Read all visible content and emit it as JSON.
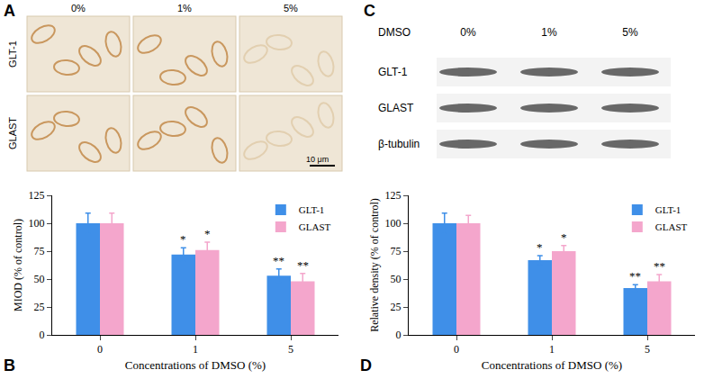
{
  "panels": [
    {
      "panel": "A",
      "columns": [
        "0%",
        "1%",
        "5%"
      ],
      "rows": [
        "GLT-1",
        "GLAST"
      ],
      "scale_bar": "10 μm"
    },
    {
      "panel": "C",
      "header": "DMSO",
      "columns": [
        "0%",
        "1%",
        "5%"
      ],
      "rows": [
        "GLT-1",
        "GLAST",
        "β-tubulin"
      ]
    }
  ],
  "chart_data": [
    {
      "panel": "B",
      "type": "bar",
      "categories": [
        "0",
        "1",
        "5"
      ],
      "x_label": "Concentrations of DMSO (%)",
      "y_label": "MIOD (% of control)",
      "ylim": [
        0,
        125
      ],
      "yticks": [
        0,
        25,
        50,
        75,
        100,
        125
      ],
      "grid": false,
      "legend": "top right",
      "series": [
        {
          "name": "GLT-1",
          "color": "#3f8fe8",
          "values": [
            100,
            72,
            53
          ],
          "errors": [
            9,
            6,
            6
          ],
          "significance": [
            null,
            "*",
            "**"
          ]
        },
        {
          "name": "GLAST",
          "color": "#f4a6cc",
          "values": [
            100,
            76,
            48
          ],
          "errors": [
            9,
            7,
            7
          ],
          "significance": [
            null,
            "*",
            "**"
          ]
        }
      ]
    },
    {
      "panel": "D",
      "type": "bar",
      "categories": [
        "0",
        "1",
        "5"
      ],
      "x_label": "Concentrations of DMSO (%)",
      "y_label": "Relative density (% of control)",
      "ylim": [
        0,
        125
      ],
      "yticks": [
        0,
        25,
        50,
        75,
        100,
        125
      ],
      "grid": false,
      "legend": "top right",
      "series": [
        {
          "name": "GLT-1",
          "color": "#3f8fe8",
          "values": [
            100,
            67,
            42
          ],
          "errors": [
            9,
            4,
            3
          ],
          "significance": [
            null,
            "*",
            "**"
          ]
        },
        {
          "name": "GLAST",
          "color": "#f4a6cc",
          "values": [
            100,
            75,
            48
          ],
          "errors": [
            7,
            5,
            6
          ],
          "significance": [
            null,
            "*",
            "**"
          ]
        }
      ]
    }
  ]
}
